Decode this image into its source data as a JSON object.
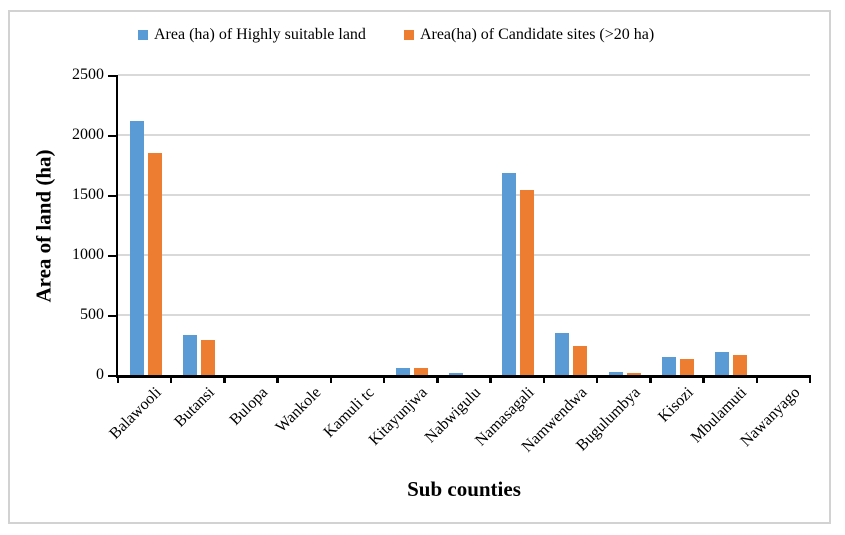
{
  "chart_data": {
    "type": "bar",
    "title": "",
    "xlabel": "Sub counties",
    "ylabel": "Area of land (ha)",
    "ylim": [
      0,
      2500
    ],
    "yticks": [
      0,
      500,
      1000,
      1500,
      2000,
      2500
    ],
    "grid": true,
    "legend_position": "top",
    "categories": [
      "Balawooli",
      "Butansi",
      "Bulopa",
      "Wankole",
      "Kamuli tc",
      "Kitayunjwa",
      "Nabwigulu",
      "Namasagali",
      "Namwendwa",
      "Bugulumbya",
      "Kisozi",
      "Mbulamuti",
      "Nawanyago"
    ],
    "series": [
      {
        "name": "Area (ha) of Highly suitable land",
        "color": "#5B9BD5",
        "values": [
          2120,
          330,
          0,
          0,
          0,
          60,
          20,
          1680,
          350,
          25,
          150,
          195,
          0
        ]
      },
      {
        "name": "Area(ha) of Candidate sites (>20 ha)",
        "color": "#ED7D31",
        "values": [
          1850,
          290,
          0,
          0,
          0,
          60,
          0,
          1540,
          245,
          20,
          135,
          170,
          0
        ]
      }
    ]
  },
  "colors": {
    "axis": "#000000",
    "gridline": "#d9d9d9",
    "frame_border": "#d2d2d2",
    "series_blue": "#5B9BD5",
    "series_orange": "#ED7D31"
  }
}
